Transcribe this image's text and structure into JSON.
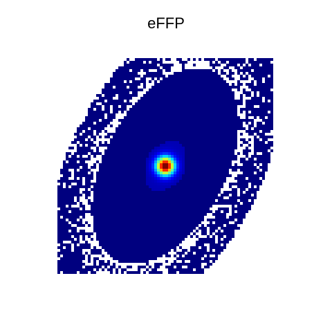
{
  "chart_data": {
    "type": "heatmap",
    "title": "eFFP",
    "xlabel": "",
    "ylabel": "",
    "axes_visible": false,
    "grid": false,
    "legend": "none",
    "colormap": [
      "#00007f",
      "#0000ff",
      "#007fff",
      "#00ffff",
      "#7fff7f",
      "#ffff00",
      "#ff7f00",
      "#ff0000",
      "#7f0000"
    ],
    "background": "#ffffff",
    "grid_size": [
      78,
      78
    ],
    "x_range": [
      -39,
      39
    ],
    "y_range": [
      -39,
      39
    ],
    "density_model": {
      "center": [
        0,
        0
      ],
      "core_sigma": 2.2,
      "halo_sigma_x": 9.5,
      "halo_sigma_y": 16.5,
      "tilt_degrees": 28,
      "peak_value": 1.0,
      "threshold": 0.004
    }
  }
}
